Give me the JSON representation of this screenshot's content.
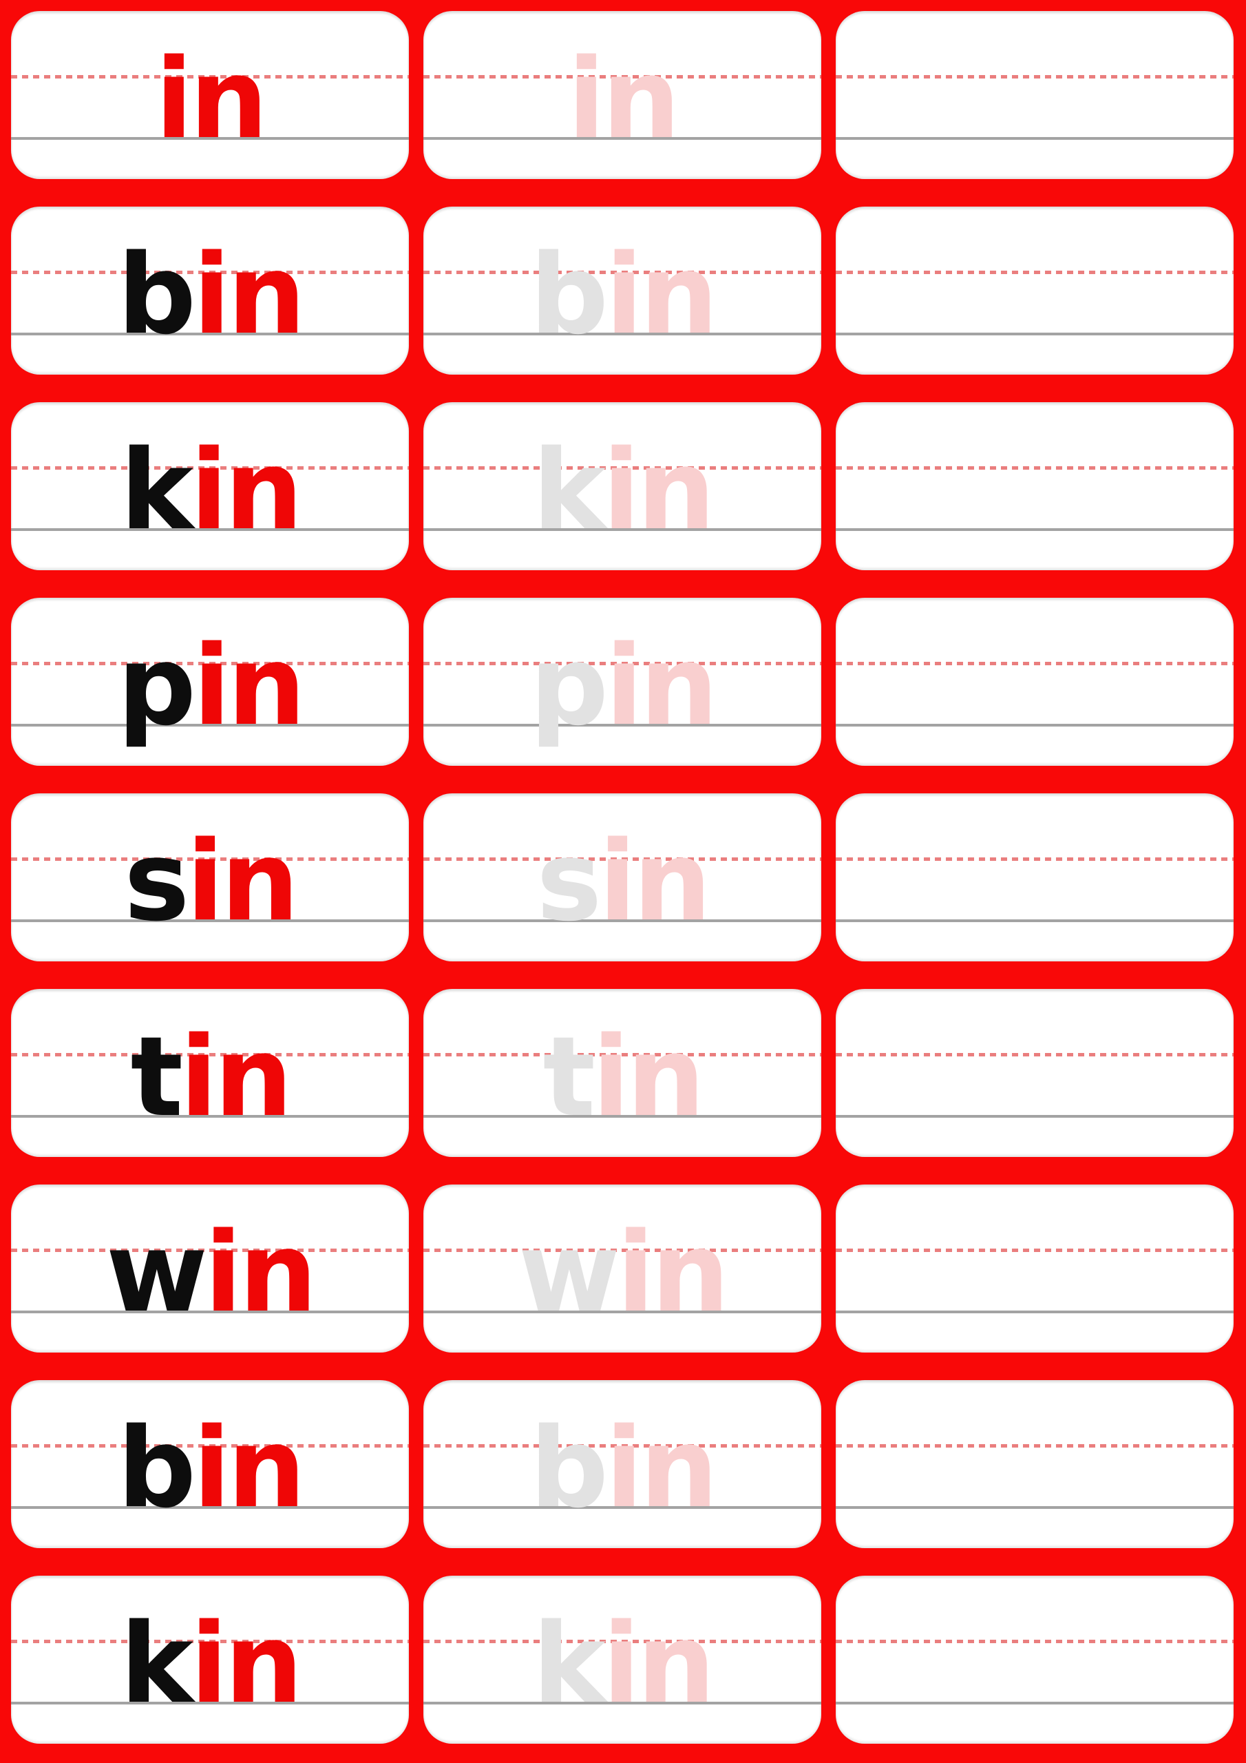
{
  "worksheet": {
    "type": "phonics-in-word-family-tracing",
    "columns": [
      "solid-word",
      "traceable-word",
      "blank-writing-space"
    ]
  },
  "palette": {
    "page_bg": "#F90808",
    "card_bg": "#FFFFFF",
    "onset_color": "#0D0D0D",
    "rime_color": "#EF0606",
    "ghost_onset_color": "#E2E2E2",
    "ghost_rime_color": "#F9CFCF",
    "midline_color": "#EA7E7E",
    "baseline_color": "#A3A3A3"
  },
  "rows": [
    {
      "word": "in",
      "onset": "",
      "rime": "in"
    },
    {
      "word": "bin",
      "onset": "b",
      "rime": "in"
    },
    {
      "word": "kin",
      "onset": "k",
      "rime": "in"
    },
    {
      "word": "pin",
      "onset": "p",
      "rime": "in"
    },
    {
      "word": "sin",
      "onset": "s",
      "rime": "in"
    },
    {
      "word": "tin",
      "onset": "t",
      "rime": "in"
    },
    {
      "word": "win",
      "onset": "w",
      "rime": "in"
    },
    {
      "word": "bin",
      "onset": "b",
      "rime": "in"
    },
    {
      "word": "kin",
      "onset": "k",
      "rime": "in"
    }
  ]
}
